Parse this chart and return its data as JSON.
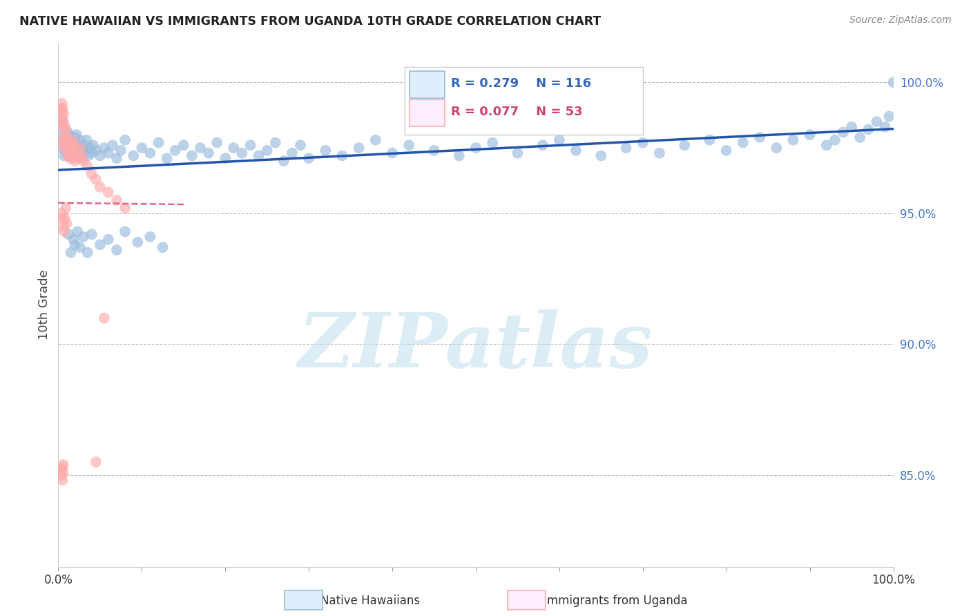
{
  "title": "NATIVE HAWAIIAN VS IMMIGRANTS FROM UGANDA 10TH GRADE CORRELATION CHART",
  "source_text": "Source: ZipAtlas.com",
  "ylabel": "10th Grade",
  "blue_R": 0.279,
  "blue_N": 116,
  "pink_R": 0.077,
  "pink_N": 53,
  "blue_color": "#99BBDD",
  "pink_color": "#FFAAAA",
  "blue_edge_color": "#99BBDD",
  "pink_edge_color": "#FFAAAA",
  "blue_line_color": "#2255AA",
  "pink_line_color": "#DD6688",
  "watermark": "ZIPatlas",
  "watermark_color": "#BBDDEE",
  "right_yticks": [
    85.0,
    90.0,
    95.0,
    100.0
  ],
  "right_ytick_labels": [
    "85.0%",
    "90.0%",
    "95.0%",
    "100.0%"
  ],
  "ylim_min": 81.5,
  "ylim_max": 101.5,
  "xlim_min": 0,
  "xlim_max": 100,
  "blue_x": [
    0.3,
    0.4,
    0.5,
    0.6,
    0.7,
    0.8,
    0.9,
    1.0,
    1.1,
    1.2,
    1.3,
    1.4,
    1.5,
    1.6,
    1.7,
    1.8,
    1.9,
    2.0,
    2.1,
    2.2,
    2.3,
    2.4,
    2.5,
    2.6,
    2.7,
    2.8,
    2.9,
    3.0,
    3.2,
    3.4,
    3.6,
    3.8,
    4.0,
    4.2,
    4.5,
    5.0,
    5.5,
    6.0,
    6.5,
    7.0,
    7.5,
    8.0,
    9.0,
    10.0,
    11.0,
    12.0,
    13.0,
    14.0,
    15.0,
    16.0,
    17.0,
    18.0,
    19.0,
    20.0,
    21.0,
    22.0,
    23.0,
    24.0,
    25.0,
    26.0,
    27.0,
    28.0,
    29.0,
    30.0,
    32.0,
    34.0,
    36.0,
    38.0,
    40.0,
    42.0,
    45.0,
    48.0,
    50.0,
    52.0,
    55.0,
    58.0,
    60.0,
    62.0,
    65.0,
    68.0,
    70.0,
    72.0,
    75.0,
    78.0,
    80.0,
    82.0,
    84.0,
    86.0,
    88.0,
    90.0,
    92.0,
    93.0,
    94.0,
    95.0,
    96.0,
    97.0,
    98.0,
    99.0,
    99.5,
    100.0,
    1.2,
    1.5,
    1.8,
    2.0,
    2.3,
    2.6,
    3.0,
    3.5,
    4.0,
    5.0,
    6.0,
    7.0,
    8.0,
    9.5,
    11.0,
    12.5
  ],
  "blue_y": [
    97.5,
    98.2,
    97.8,
    98.5,
    97.2,
    98.0,
    97.6,
    97.3,
    98.1,
    97.5,
    98.0,
    97.2,
    97.8,
    97.4,
    97.6,
    97.1,
    97.9,
    97.3,
    97.7,
    98.0,
    97.4,
    97.2,
    97.6,
    97.8,
    97.3,
    97.5,
    97.1,
    97.4,
    97.6,
    97.8,
    97.2,
    97.5,
    97.3,
    97.6,
    97.4,
    97.2,
    97.5,
    97.3,
    97.6,
    97.1,
    97.4,
    97.8,
    97.2,
    97.5,
    97.3,
    97.7,
    97.1,
    97.4,
    97.6,
    97.2,
    97.5,
    97.3,
    97.7,
    97.1,
    97.5,
    97.3,
    97.6,
    97.2,
    97.4,
    97.7,
    97.0,
    97.3,
    97.6,
    97.1,
    97.4,
    97.2,
    97.5,
    97.8,
    97.3,
    97.6,
    97.4,
    97.2,
    97.5,
    97.7,
    97.3,
    97.6,
    97.8,
    97.4,
    97.2,
    97.5,
    97.7,
    97.3,
    97.6,
    97.8,
    97.4,
    97.7,
    97.9,
    97.5,
    97.8,
    98.0,
    97.6,
    97.8,
    98.1,
    98.3,
    97.9,
    98.2,
    98.5,
    98.3,
    98.7,
    100.0,
    94.2,
    93.5,
    94.0,
    93.8,
    94.3,
    93.7,
    94.1,
    93.5,
    94.2,
    93.8,
    94.0,
    93.6,
    94.3,
    93.9,
    94.1,
    93.7
  ],
  "pink_x": [
    0.2,
    0.3,
    0.35,
    0.4,
    0.45,
    0.5,
    0.55,
    0.6,
    0.65,
    0.7,
    0.75,
    0.8,
    0.85,
    0.9,
    0.95,
    1.0,
    1.1,
    1.2,
    1.3,
    1.4,
    1.5,
    1.6,
    1.7,
    1.8,
    1.9,
    2.0,
    2.2,
    2.4,
    2.6,
    2.8,
    3.0,
    3.5,
    4.0,
    4.5,
    5.0,
    6.0,
    7.0,
    8.0,
    0.4,
    0.5,
    0.6,
    0.7,
    0.8,
    0.9,
    1.0,
    0.3,
    0.4,
    0.5,
    0.5,
    0.6,
    0.6,
    5.5,
    4.5
  ],
  "pink_y": [
    97.8,
    98.5,
    99.0,
    98.8,
    99.2,
    98.6,
    99.0,
    98.4,
    98.8,
    97.5,
    98.2,
    97.8,
    98.3,
    97.6,
    98.0,
    97.4,
    97.8,
    97.2,
    97.6,
    97.1,
    97.5,
    97.3,
    97.8,
    97.2,
    97.6,
    97.0,
    97.4,
    97.1,
    97.5,
    97.2,
    97.0,
    96.8,
    96.5,
    96.3,
    96.0,
    95.8,
    95.5,
    95.2,
    95.0,
    94.8,
    94.5,
    94.3,
    94.8,
    95.2,
    94.6,
    85.2,
    85.0,
    85.3,
    84.8,
    85.1,
    85.4,
    91.0,
    85.5
  ]
}
